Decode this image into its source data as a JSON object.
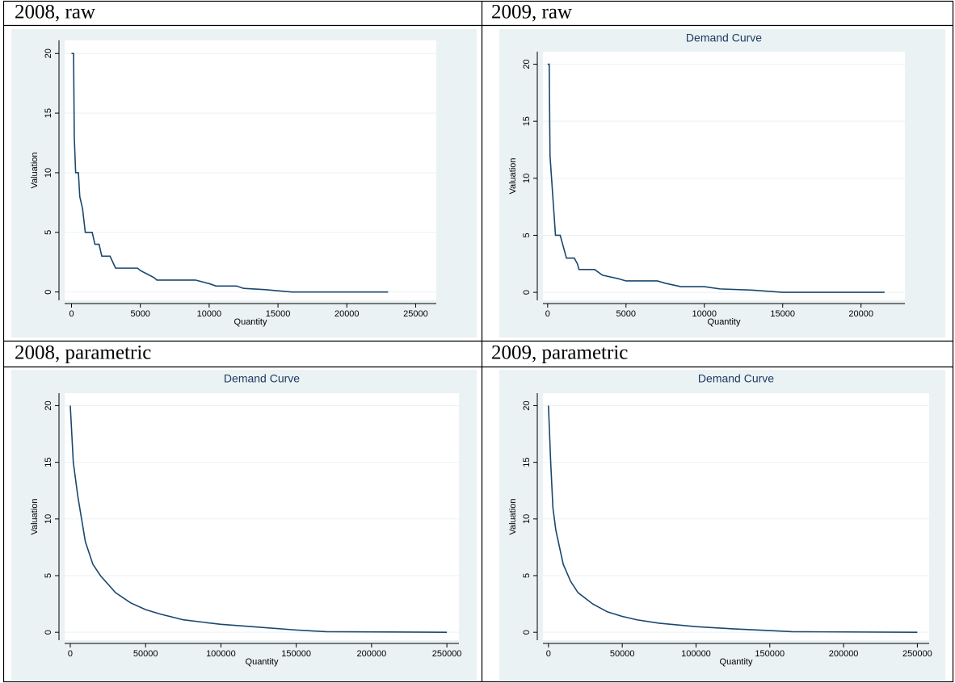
{
  "chart_data": [
    {
      "type": "line",
      "panel_label": "2008, raw",
      "xlabel": "Quantity",
      "ylabel": "Valuation",
      "color": "#1a476f",
      "x": [
        0,
        150,
        200,
        300,
        500,
        600,
        800,
        900,
        1000,
        1500,
        1700,
        2000,
        2200,
        2800,
        3000,
        3200,
        4800,
        5000,
        5500,
        6000,
        6200,
        9000,
        10000,
        10500,
        12000,
        12500,
        14000,
        15000,
        16000,
        23000
      ],
      "values": [
        20,
        20,
        13,
        10,
        10,
        8,
        7,
        6,
        5,
        5,
        4,
        4,
        3,
        3,
        2.5,
        2,
        2,
        1.8,
        1.5,
        1.2,
        1,
        1,
        0.7,
        0.5,
        0.5,
        0.3,
        0.2,
        0.1,
        0,
        0
      ],
      "xlim": [
        -500,
        26500
      ],
      "ylim": [
        -0.7,
        21.1
      ],
      "xticks": [
        0,
        5000,
        10000,
        15000,
        20000,
        25000
      ],
      "yticks": [
        0,
        5,
        10,
        15,
        20
      ],
      "grid": true
    },
    {
      "type": "line",
      "panel_label": "2009, raw",
      "title": "Demand Curve",
      "xlabel": "Quantity",
      "ylabel": "Valuation",
      "color": "#1a476f",
      "x": [
        0,
        100,
        150,
        250,
        400,
        500,
        800,
        1000,
        1200,
        1700,
        1900,
        2000,
        3000,
        3500,
        4500,
        5000,
        7000,
        7500,
        8500,
        10000,
        11000,
        13000,
        14000,
        15000,
        21500
      ],
      "values": [
        20,
        20,
        12,
        10,
        7,
        5,
        5,
        4,
        3,
        3,
        2.5,
        2,
        2,
        1.5,
        1.2,
        1,
        1,
        0.8,
        0.5,
        0.5,
        0.3,
        0.2,
        0.1,
        0,
        0
      ],
      "xlim": [
        -300,
        22800
      ],
      "ylim": [
        -0.7,
        21.1
      ],
      "xticks": [
        0,
        5000,
        10000,
        15000,
        20000
      ],
      "yticks": [
        0,
        5,
        10,
        15,
        20
      ],
      "grid": true
    },
    {
      "type": "line",
      "panel_label": "2008, parametric",
      "title": "Demand Curve",
      "xlabel": "Quantity",
      "ylabel": "Valuation",
      "color": "#1a476f",
      "x": [
        0,
        2000,
        5000,
        10000,
        15000,
        20000,
        30000,
        40000,
        50000,
        60000,
        75000,
        100000,
        125000,
        150000,
        170000,
        250000
      ],
      "values": [
        20,
        15,
        12,
        8,
        6,
        5,
        3.5,
        2.6,
        2,
        1.6,
        1.1,
        0.7,
        0.45,
        0.2,
        0.05,
        0
      ],
      "xlim": [
        -3750,
        258000
      ],
      "ylim": [
        -0.7,
        21.1
      ],
      "xticks": [
        0,
        50000,
        100000,
        150000,
        200000,
        250000
      ],
      "yticks": [
        0,
        5,
        10,
        15,
        20
      ],
      "grid": true
    },
    {
      "type": "line",
      "panel_label": "2009, parametric",
      "title": "Demand Curve",
      "xlabel": "Quantity",
      "ylabel": "Valuation",
      "color": "#1a476f",
      "x": [
        0,
        1500,
        3000,
        5000,
        10000,
        15000,
        20000,
        30000,
        40000,
        50000,
        60000,
        75000,
        100000,
        125000,
        150000,
        165000,
        250000
      ],
      "values": [
        20,
        15,
        11,
        9,
        6,
        4.5,
        3.5,
        2.5,
        1.8,
        1.4,
        1.1,
        0.8,
        0.5,
        0.3,
        0.15,
        0.05,
        0
      ],
      "xlim": [
        -3750,
        258000
      ],
      "ylim": [
        -0.7,
        21.1
      ],
      "xticks": [
        0,
        50000,
        100000,
        150000,
        200000,
        250000
      ],
      "yticks": [
        0,
        5,
        10,
        15,
        20
      ],
      "grid": true
    }
  ]
}
